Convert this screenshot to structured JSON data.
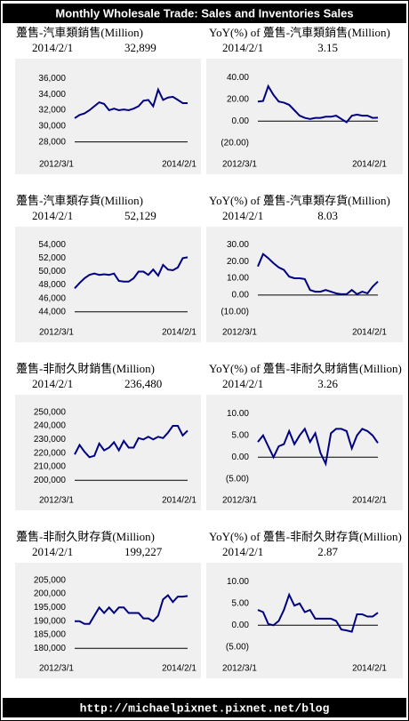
{
  "header": {
    "title": "Monthly Wholesale Trade: Sales and Inventories Sales"
  },
  "footer": {
    "url": "http://michaelpixnet.pixnet.net/blog"
  },
  "chart_data": [
    {
      "type": "line",
      "title": "躉售-汽車類銷售(Million)",
      "latest_date": "2014/2/1",
      "latest_label": "32,899",
      "categories": [
        "2012/3/1",
        null,
        null,
        null,
        null,
        null,
        null,
        null,
        null,
        null,
        null,
        null,
        null,
        null,
        null,
        null,
        null,
        null,
        null,
        null,
        null,
        null,
        null,
        "2014/2/1"
      ],
      "values": [
        31000,
        31400,
        31600,
        32000,
        32500,
        33000,
        32800,
        32000,
        32200,
        32000,
        32100,
        32000,
        32200,
        32500,
        33200,
        33300,
        32500,
        34600,
        33300,
        33600,
        33700,
        33300,
        32900,
        32899
      ],
      "color": "#000080",
      "ylim": [
        26500,
        37500
      ],
      "baseline": 28000,
      "yticks": [
        {
          "value": 28000,
          "label": "28,000"
        },
        {
          "value": 30000,
          "label": "30,000"
        },
        {
          "value": 32000,
          "label": "32,000"
        },
        {
          "value": 34000,
          "label": "34,000"
        },
        {
          "value": 36000,
          "label": "36,000"
        }
      ]
    },
    {
      "type": "line",
      "title": "YoY(%) of 躉售-汽車類銷售(Million)",
      "latest_date": "2014/2/1",
      "latest_label": "3.15",
      "categories": [
        "2012/3/1",
        null,
        null,
        null,
        null,
        null,
        null,
        null,
        null,
        null,
        null,
        null,
        null,
        null,
        null,
        null,
        null,
        null,
        null,
        null,
        null,
        null,
        null,
        "2014/2/1"
      ],
      "values": [
        18,
        18.5,
        32,
        24,
        18,
        17,
        15,
        10,
        5,
        3,
        2,
        3,
        3,
        4,
        4,
        5,
        2,
        -1,
        5,
        6,
        5,
        5,
        3,
        3.15
      ],
      "color": "#000080",
      "ylim": [
        -30,
        50
      ],
      "baseline": 0,
      "yticks": [
        {
          "value": -20,
          "label": "(20.00)"
        },
        {
          "value": 0,
          "label": "0.00"
        },
        {
          "value": 20,
          "label": "20.00"
        },
        {
          "value": 40,
          "label": "40.00"
        }
      ]
    },
    {
      "type": "line",
      "title": "躉售-汽車類存貨(Million)",
      "latest_date": "2014/2/1",
      "latest_label": "52,129",
      "categories": [
        "2012/3/1",
        null,
        null,
        null,
        null,
        null,
        null,
        null,
        null,
        null,
        null,
        null,
        null,
        null,
        null,
        null,
        null,
        null,
        null,
        null,
        null,
        null,
        null,
        "2014/2/1"
      ],
      "values": [
        47500,
        48300,
        49000,
        49500,
        49700,
        49500,
        49600,
        49500,
        49700,
        48600,
        48500,
        48500,
        49000,
        50000,
        50000,
        49500,
        50300,
        49400,
        51000,
        50300,
        50200,
        50600,
        52000,
        52129
      ],
      "color": "#000080",
      "ylim": [
        42500,
        55500
      ],
      "baseline": 44000,
      "yticks": [
        {
          "value": 44000,
          "label": "44,000"
        },
        {
          "value": 46000,
          "label": "46,000"
        },
        {
          "value": 48000,
          "label": "48,000"
        },
        {
          "value": 50000,
          "label": "50,000"
        },
        {
          "value": 52000,
          "label": "52,000"
        },
        {
          "value": 54000,
          "label": "54,000"
        }
      ]
    },
    {
      "type": "line",
      "title": "YoY(%) of 躉售-汽車類存貨(Million)",
      "latest_date": "2014/2/1",
      "latest_label": "8.03",
      "categories": [
        "2012/3/1",
        null,
        null,
        null,
        null,
        null,
        null,
        null,
        null,
        null,
        null,
        null,
        null,
        null,
        null,
        null,
        null,
        null,
        null,
        null,
        null,
        null,
        null,
        "2014/2/1"
      ],
      "values": [
        17,
        24.5,
        22,
        19,
        16.5,
        15,
        11,
        10,
        10,
        9.5,
        3,
        2,
        2,
        3,
        2,
        1,
        0.5,
        0.5,
        3,
        0.5,
        2,
        1,
        5,
        8.03
      ],
      "color": "#000080",
      "ylim": [
        -16,
        36
      ],
      "baseline": 0,
      "yticks": [
        {
          "value": -10,
          "label": "(10.00)"
        },
        {
          "value": 0,
          "label": "0.00"
        },
        {
          "value": 10,
          "label": "10.00"
        },
        {
          "value": 20,
          "label": "20.00"
        },
        {
          "value": 30,
          "label": "30.00"
        }
      ]
    },
    {
      "type": "line",
      "title": "躉售-非耐久財銷售(Million)",
      "latest_date": "2014/2/1",
      "latest_label": "236,480",
      "categories": [
        "2012/3/1",
        null,
        null,
        null,
        null,
        null,
        null,
        null,
        null,
        null,
        null,
        null,
        null,
        null,
        null,
        null,
        null,
        null,
        null,
        null,
        null,
        null,
        null,
        "2014/2/1"
      ],
      "values": [
        219000,
        226000,
        221000,
        217000,
        218000,
        227000,
        222000,
        224000,
        228000,
        222000,
        229000,
        224000,
        224000,
        231000,
        230000,
        232000,
        230000,
        232000,
        231000,
        235000,
        240000,
        240000,
        233000,
        236480
      ],
      "color": "#000080",
      "ylim": [
        193000,
        257000
      ],
      "baseline": 200000,
      "yticks": [
        {
          "value": 200000,
          "label": "200,000"
        },
        {
          "value": 210000,
          "label": "210,000"
        },
        {
          "value": 220000,
          "label": "220,000"
        },
        {
          "value": 230000,
          "label": "230,000"
        },
        {
          "value": 240000,
          "label": "240,000"
        },
        {
          "value": 250000,
          "label": "250,000"
        }
      ]
    },
    {
      "type": "line",
      "title": "YoY(%) of 躉售-非耐久財銷售(Million)",
      "latest_date": "2014/2/1",
      "latest_label": "3.26",
      "categories": [
        "2012/3/1",
        null,
        null,
        null,
        null,
        null,
        null,
        null,
        null,
        null,
        null,
        null,
        null,
        null,
        null,
        null,
        null,
        null,
        null,
        null,
        null,
        null,
        null,
        "2014/2/1"
      ],
      "values": [
        3.5,
        5,
        2.5,
        0,
        2.5,
        3,
        6,
        3,
        5,
        6.5,
        3.5,
        5.5,
        1,
        -1.5,
        5.5,
        6.5,
        6.5,
        6,
        2,
        5,
        6.5,
        6,
        5,
        3.26
      ],
      "color": "#000080",
      "ylim": [
        -7.5,
        12.5
      ],
      "baseline": 0,
      "yticks": [
        {
          "value": -5,
          "label": "(5.00)"
        },
        {
          "value": 0,
          "label": "0.00"
        },
        {
          "value": 5,
          "label": "5.00"
        },
        {
          "value": 10,
          "label": "10.00"
        }
      ]
    },
    {
      "type": "line",
      "title": "躉售-非耐久財存貨(Million)",
      "latest_date": "2014/2/1",
      "latest_label": "199,227",
      "categories": [
        "2012/3/1",
        null,
        null,
        null,
        null,
        null,
        null,
        null,
        null,
        null,
        null,
        null,
        null,
        null,
        null,
        null,
        null,
        null,
        null,
        null,
        null,
        null,
        null,
        "2014/2/1"
      ],
      "values": [
        190000,
        190000,
        189000,
        189000,
        192000,
        195000,
        193000,
        195000,
        193000,
        195000,
        195000,
        193000,
        193000,
        193000,
        191000,
        191000,
        190000,
        192000,
        198000,
        199500,
        197000,
        199000,
        199000,
        199227
      ],
      "color": "#000080",
      "ylim": [
        176500,
        208500
      ],
      "baseline": 180000,
      "yticks": [
        {
          "value": 180000,
          "label": "180,000"
        },
        {
          "value": 185000,
          "label": "185,000"
        },
        {
          "value": 190000,
          "label": "190,000"
        },
        {
          "value": 195000,
          "label": "195,000"
        },
        {
          "value": 200000,
          "label": "200,000"
        },
        {
          "value": 205000,
          "label": "205,000"
        }
      ]
    },
    {
      "type": "line",
      "title": "YoY(%) of 躉售-非耐久財存貨(Million)",
      "latest_date": "2014/2/1",
      "latest_label": "2.87",
      "categories": [
        "2012/3/1",
        null,
        null,
        null,
        null,
        null,
        null,
        null,
        null,
        null,
        null,
        null,
        null,
        null,
        null,
        null,
        null,
        null,
        null,
        null,
        null,
        null,
        null,
        "2014/2/1"
      ],
      "values": [
        3.5,
        3,
        0.3,
        0,
        1,
        3.5,
        7,
        4.5,
        5,
        3,
        3.5,
        1.5,
        1.5,
        1.5,
        1.5,
        1,
        -1,
        -1.2,
        -1.5,
        2.5,
        2.5,
        2,
        2,
        2.87
      ],
      "color": "#000080",
      "ylim": [
        -7.5,
        12.5
      ],
      "baseline": 0,
      "yticks": [
        {
          "value": -5,
          "label": "(5.00)"
        },
        {
          "value": 0,
          "label": "0.00"
        },
        {
          "value": 5,
          "label": "5.00"
        },
        {
          "value": 10,
          "label": "10.00"
        }
      ]
    }
  ]
}
